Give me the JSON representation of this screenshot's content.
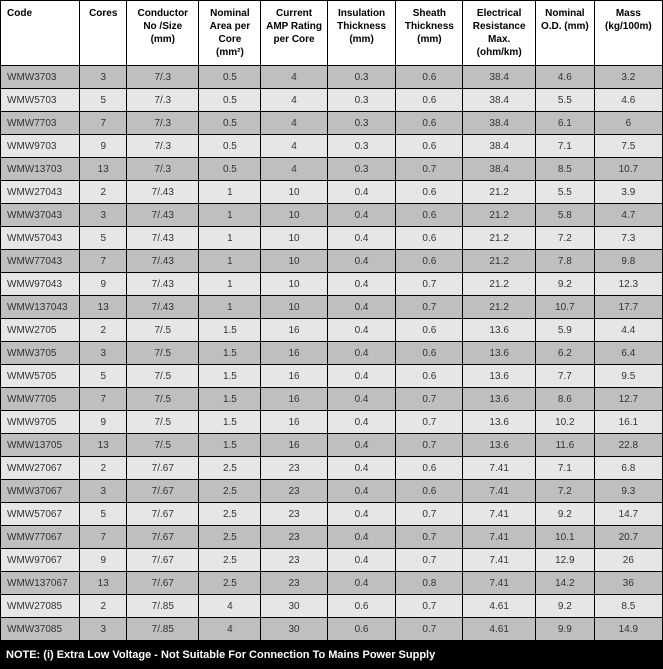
{
  "columns": [
    "Code",
    "Cores",
    "Conductor No /Size (mm)",
    "Nominal Area per Core (mm²)",
    "Current AMP Rating per Core",
    "Insulation Thickness (mm)",
    "Sheath Thickness (mm)",
    "Electrical Resistance Max. (ohm/km)",
    "Nominal O.D. (mm)",
    "Mass (kg/100m)"
  ],
  "rows": [
    [
      "WMW3703",
      "3",
      "7/.3",
      "0.5",
      "4",
      "0.3",
      "0.6",
      "38.4",
      "4.6",
      "3.2"
    ],
    [
      "WMW5703",
      "5",
      "7/.3",
      "0.5",
      "4",
      "0.3",
      "0.6",
      "38.4",
      "5.5",
      "4.6"
    ],
    [
      "WMW7703",
      "7",
      "7/.3",
      "0.5",
      "4",
      "0.3",
      "0.6",
      "38.4",
      "6.1",
      "6"
    ],
    [
      "WMW9703",
      "9",
      "7/.3",
      "0.5",
      "4",
      "0.3",
      "0.6",
      "38.4",
      "7.1",
      "7.5"
    ],
    [
      "WMW13703",
      "13",
      "7/.3",
      "0.5",
      "4",
      "0.3",
      "0.7",
      "38.4",
      "8.5",
      "10.7"
    ],
    [
      "WMW27043",
      "2",
      "7/.43",
      "1",
      "10",
      "0.4",
      "0.6",
      "21.2",
      "5.5",
      "3.9"
    ],
    [
      "WMW37043",
      "3",
      "7/.43",
      "1",
      "10",
      "0.4",
      "0.6",
      "21.2",
      "5.8",
      "4.7"
    ],
    [
      "WMW57043",
      "5",
      "7/.43",
      "1",
      "10",
      "0.4",
      "0.6",
      "21.2",
      "7.2",
      "7.3"
    ],
    [
      "WMW77043",
      "7",
      "7/.43",
      "1",
      "10",
      "0.4",
      "0.6",
      "21.2",
      "7.8",
      "9.8"
    ],
    [
      "WMW97043",
      "9",
      "7/.43",
      "1",
      "10",
      "0.4",
      "0.7",
      "21.2",
      "9.2",
      "12.3"
    ],
    [
      "WMW137043",
      "13",
      "7/.43",
      "1",
      "10",
      "0.4",
      "0.7",
      "21.2",
      "10.7",
      "17.7"
    ],
    [
      "WMW2705",
      "2",
      "7/.5",
      "1.5",
      "16",
      "0.4",
      "0.6",
      "13.6",
      "5.9",
      "4.4"
    ],
    [
      "WMW3705",
      "3",
      "7/.5",
      "1.5",
      "16",
      "0.4",
      "0.6",
      "13.6",
      "6.2",
      "6.4"
    ],
    [
      "WMW5705",
      "5",
      "7/.5",
      "1.5",
      "16",
      "0.4",
      "0.6",
      "13.6",
      "7.7",
      "9.5"
    ],
    [
      "WMW7705",
      "7",
      "7/.5",
      "1.5",
      "16",
      "0.4",
      "0.7",
      "13.6",
      "8.6",
      "12.7"
    ],
    [
      "WMW9705",
      "9",
      "7/.5",
      "1.5",
      "16",
      "0.4",
      "0.7",
      "13.6",
      "10.2",
      "16.1"
    ],
    [
      "WMW13705",
      "13",
      "7/.5",
      "1.5",
      "16",
      "0.4",
      "0.7",
      "13.6",
      "11.6",
      "22.8"
    ],
    [
      "WMW27067",
      "2",
      "7/.67",
      "2.5",
      "23",
      "0.4",
      "0.6",
      "7.41",
      "7.1",
      "6.8"
    ],
    [
      "WMW37067",
      "3",
      "7/.67",
      "2.5",
      "23",
      "0.4",
      "0.6",
      "7.41",
      "7.2",
      "9.3"
    ],
    [
      "WMW57067",
      "5",
      "7/.67",
      "2.5",
      "23",
      "0.4",
      "0.7",
      "7.41",
      "9.2",
      "14.7"
    ],
    [
      "WMW77067",
      "7",
      "7/.67",
      "2.5",
      "23",
      "0.4",
      "0.7",
      "7.41",
      "10.1",
      "20.7"
    ],
    [
      "WMW97067",
      "9",
      "7/.67",
      "2.5",
      "23",
      "0.4",
      "0.7",
      "7.41",
      "12.9",
      "26"
    ],
    [
      "WMW137067",
      "13",
      "7/.67",
      "2.5",
      "23",
      "0.4",
      "0.8",
      "7.41",
      "14.2",
      "36"
    ],
    [
      "WMW27085",
      "2",
      "7/.85",
      "4",
      "30",
      "0.6",
      "0.7",
      "4.61",
      "9.2",
      "8.5"
    ],
    [
      "WMW37085",
      "3",
      "7/.85",
      "4",
      "30",
      "0.6",
      "0.7",
      "4.61",
      "9.9",
      "14.9"
    ]
  ],
  "note": "NOTE: (i) Extra Low Voltage - Not Suitable For Connection To Mains Power Supply",
  "row_colors": {
    "light": "#e6e6e6",
    "dark": "#bfbfbf"
  },
  "header_bg": "#ffffff",
  "border_color": "#000000"
}
